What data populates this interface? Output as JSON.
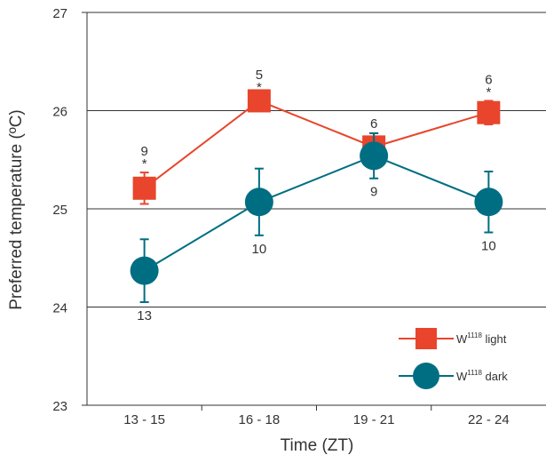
{
  "chart_data": {
    "type": "line",
    "title": "",
    "xlabel": "Time (ZT)",
    "ylabel": "Preferred temperature (ºC)",
    "categories": [
      "13 - 15",
      "16 - 18",
      "19 - 21",
      "22 - 24"
    ],
    "ylim": [
      23,
      27
    ],
    "yticks": [
      "23",
      "24",
      "25",
      "26",
      "27"
    ],
    "grid": "horizontal",
    "legend_position": "bottom-right",
    "series": [
      {
        "name_base": "W",
        "name_sup": "1118",
        "name_suffix": " light",
        "color": "#e8452c",
        "marker": "square",
        "values": [
          25.21,
          26.1,
          25.63,
          25.98
        ],
        "error": [
          0.16,
          0.05,
          0.14,
          0.12
        ],
        "n_labels": [
          "9",
          "5",
          "6",
          "6"
        ],
        "significance": [
          "*",
          "*",
          "",
          "*"
        ]
      },
      {
        "name_base": "W",
        "name_sup": "1118",
        "name_suffix": " dark",
        "color": "#006e82",
        "marker": "circle",
        "values": [
          24.37,
          25.07,
          25.54,
          25.07
        ],
        "error": [
          0.32,
          0.34,
          0.23,
          0.31
        ],
        "n_labels": [
          "13",
          "10",
          "9",
          "10"
        ],
        "significance": [
          "",
          "",
          "",
          ""
        ]
      }
    ]
  }
}
